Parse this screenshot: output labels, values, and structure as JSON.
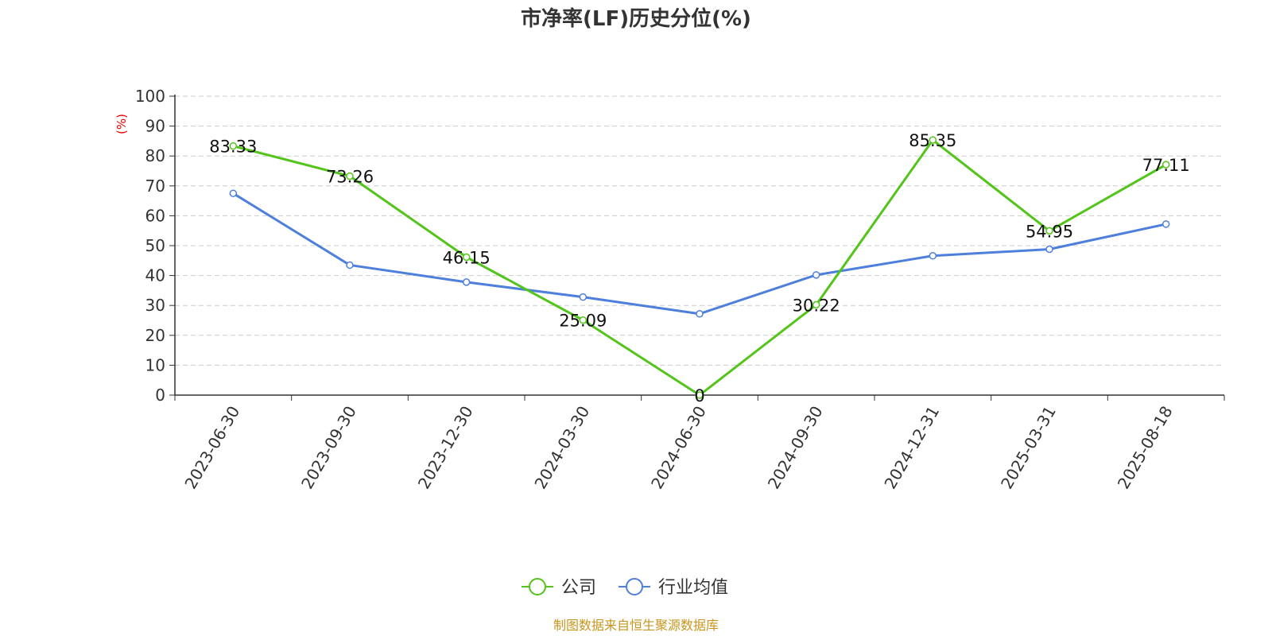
{
  "chart_data": {
    "type": "line",
    "title": "市净率(LF)历史分位(%)",
    "ylabel": "(%)",
    "ylim": [
      0,
      100
    ],
    "yticks": [
      0,
      10,
      20,
      30,
      40,
      50,
      60,
      70,
      80,
      90,
      100
    ],
    "grid": true,
    "legend_position": "bottom-center",
    "categories": [
      "2023-06-30",
      "2023-09-30",
      "2023-12-30",
      "2024-03-30",
      "2024-06-30",
      "2024-09-30",
      "2024-12-31",
      "2025-03-31",
      "2025-08-18"
    ],
    "series": [
      {
        "name": "公司",
        "color": "#52c41a",
        "values": [
          83.33,
          73.26,
          46.15,
          25.09,
          0,
          30.22,
          85.35,
          54.95,
          77.11
        ],
        "labels": [
          "83.33",
          "73.26",
          "46.15",
          "25.09",
          "0",
          "30.22",
          "85.35",
          "54.95",
          "77.11"
        ]
      },
      {
        "name": "行业均值",
        "color": "#4e7fdc",
        "values": [
          67.5,
          43.5,
          37.8,
          32.8,
          27.2,
          40.2,
          46.6,
          48.8,
          57.2
        ]
      }
    ],
    "source": "制图数据来自恒生聚源数据库",
    "colors": {
      "title": "#333333",
      "axis": "#333333",
      "ylabel": "#e00000",
      "grid": "#cccccc",
      "source": "#c8961e"
    }
  }
}
